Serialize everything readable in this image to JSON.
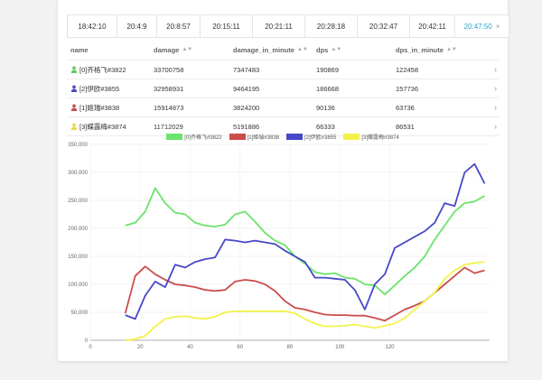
{
  "tabs": [
    {
      "label": "18:42:10",
      "active": false
    },
    {
      "label": "20:4:9",
      "active": false
    },
    {
      "label": "20:8:57",
      "active": false
    },
    {
      "label": "20:15:11",
      "active": false
    },
    {
      "label": "20:21:11",
      "active": false
    },
    {
      "label": "20:28:18",
      "active": false
    },
    {
      "label": "20:32:47",
      "active": false
    },
    {
      "label": "20:42:11",
      "active": false
    },
    {
      "label": "20:47:50",
      "active": true,
      "close": "×"
    }
  ],
  "table": {
    "headers": {
      "name": "name",
      "damage": "damage",
      "damage_in_minute": "damage_in_minute",
      "dps": "dps",
      "dps_in_minute": "dps_in_minute"
    },
    "rows": [
      {
        "name": "[0]齐格飞#3822",
        "damage": "33700758",
        "damage_in_minute": "7347483",
        "dps": "190869",
        "dps_in_minute": "122458",
        "icon_color": "#5ec85e"
      },
      {
        "name": "[2]伊欧#3855",
        "damage": "32958931",
        "damage_in_minute": "9464195",
        "dps": "186668",
        "dps_in_minute": "157736",
        "icon_color": "#4a4ab8"
      },
      {
        "name": "[1]姬瑞#3838",
        "damage": "15914873",
        "damage_in_minute": "3824200",
        "dps": "90136",
        "dps_in_minute": "63736",
        "icon_color": "#c85050"
      },
      {
        "name": "[3]蝶露梅#3874",
        "damage": "11712029",
        "damage_in_minute": "5191886",
        "dps": "66333",
        "dps_in_minute": "86531",
        "icon_color": "#e6d84a"
      }
    ]
  },
  "chart_data": {
    "type": "line",
    "title": "",
    "xlabel": "",
    "ylabel": "",
    "xlim": [
      0,
      160
    ],
    "ylim": [
      0,
      350000
    ],
    "x_ticks": [
      "0",
      "20",
      "40",
      "60",
      "80",
      "100",
      "120"
    ],
    "y_ticks": [
      "0",
      "50,000",
      "100,000",
      "150,000",
      "200,000",
      "250,000",
      "300,000",
      "350,000"
    ],
    "legend_position": "top",
    "series": [
      {
        "name": "[0]齐格飞#3822",
        "color": "#6be36b",
        "x": [
          14,
          18,
          22,
          26,
          30,
          34,
          38,
          42,
          46,
          50,
          54,
          58,
          62,
          66,
          70,
          74,
          78,
          82,
          86,
          90,
          94,
          98,
          102,
          106,
          110,
          114,
          118,
          122,
          126,
          130,
          134,
          138,
          142,
          146,
          150,
          154,
          158
        ],
        "y": [
          205000,
          210000,
          230000,
          272000,
          245000,
          228000,
          225000,
          210000,
          205000,
          203000,
          207000,
          225000,
          230000,
          212000,
          192000,
          178000,
          170000,
          150000,
          137000,
          122000,
          118000,
          120000,
          112000,
          110000,
          100000,
          98000,
          82000,
          98000,
          115000,
          130000,
          150000,
          180000,
          205000,
          230000,
          245000,
          248000,
          258000
        ]
      },
      {
        "name": "[1]姬瑞#3838",
        "color": "#cc4c4c",
        "x": [
          14,
          18,
          22,
          26,
          30,
          34,
          38,
          42,
          46,
          50,
          54,
          58,
          62,
          66,
          70,
          74,
          78,
          82,
          86,
          90,
          94,
          98,
          102,
          106,
          110,
          114,
          118,
          122,
          126,
          130,
          134,
          138,
          142,
          146,
          150,
          154,
          158
        ],
        "y": [
          48000,
          115000,
          132000,
          118000,
          108000,
          100000,
          98000,
          95000,
          90000,
          88000,
          90000,
          105000,
          108000,
          106000,
          100000,
          88000,
          70000,
          58000,
          55000,
          50000,
          46000,
          45000,
          45000,
          44000,
          44000,
          40000,
          35000,
          45000,
          55000,
          62000,
          70000,
          85000,
          100000,
          115000,
          130000,
          120000,
          125000
        ]
      },
      {
        "name": "[2]伊欧#3855",
        "color": "#4848c8",
        "x": [
          14,
          18,
          22,
          26,
          30,
          34,
          38,
          42,
          46,
          50,
          54,
          58,
          62,
          66,
          70,
          74,
          78,
          82,
          86,
          90,
          94,
          98,
          102,
          106,
          110,
          114,
          118,
          122,
          126,
          130,
          134,
          138,
          142,
          146,
          150,
          154,
          158
        ],
        "y": [
          45000,
          38000,
          80000,
          105000,
          95000,
          135000,
          130000,
          140000,
          145000,
          148000,
          180000,
          178000,
          175000,
          178000,
          175000,
          172000,
          160000,
          150000,
          140000,
          112000,
          112000,
          110000,
          108000,
          90000,
          55000,
          100000,
          118000,
          165000,
          175000,
          185000,
          195000,
          210000,
          245000,
          240000,
          300000,
          315000,
          280000
        ]
      },
      {
        "name": "[3]蝶露梅#3874",
        "color": "#f2f24a",
        "x": [
          14,
          18,
          22,
          26,
          30,
          34,
          38,
          42,
          46,
          50,
          54,
          58,
          62,
          66,
          70,
          74,
          78,
          82,
          86,
          90,
          94,
          98,
          102,
          106,
          110,
          114,
          118,
          122,
          126,
          130,
          134,
          138,
          142,
          146,
          150,
          154,
          158
        ],
        "y": [
          0,
          2000,
          8000,
          25000,
          38000,
          42000,
          43000,
          40000,
          38000,
          42000,
          50000,
          52000,
          52000,
          52000,
          52000,
          52000,
          52000,
          48000,
          38000,
          30000,
          25000,
          25000,
          26000,
          28000,
          25000,
          22000,
          26000,
          30000,
          40000,
          55000,
          70000,
          85000,
          110000,
          125000,
          135000,
          138000,
          140000
        ]
      }
    ]
  }
}
